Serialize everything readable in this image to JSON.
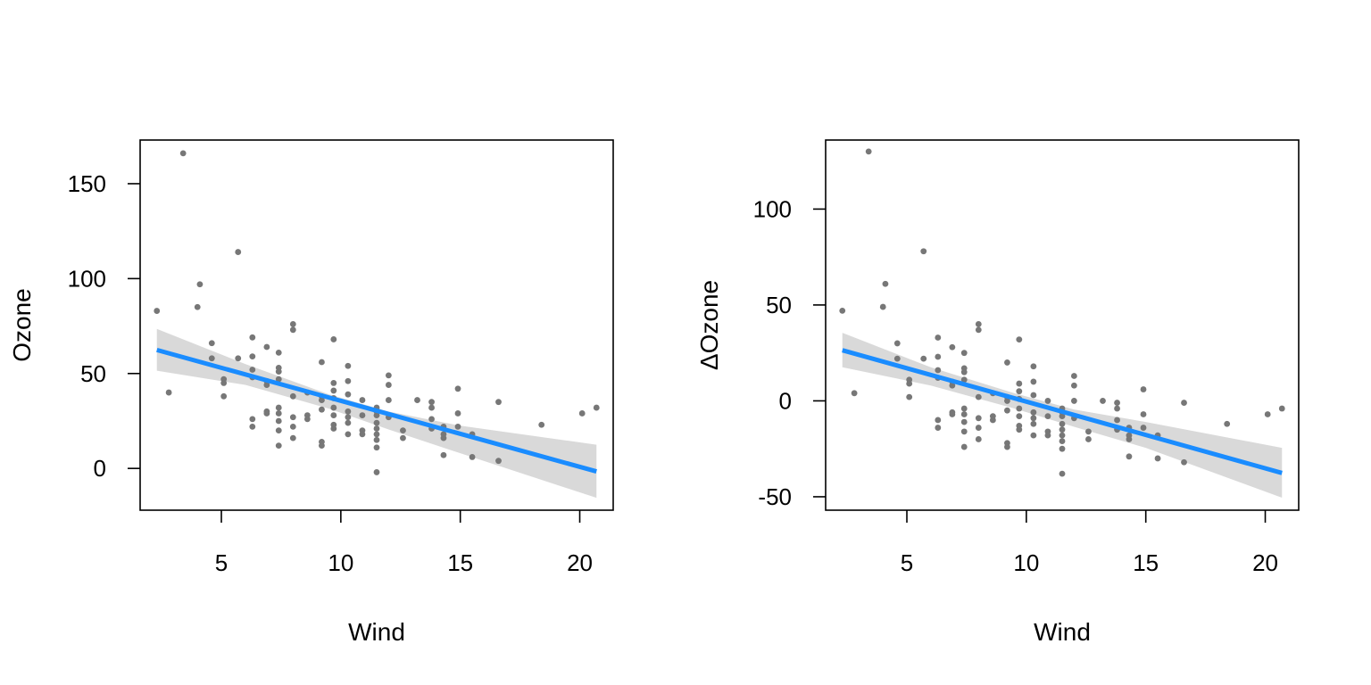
{
  "chart_data": [
    {
      "type": "scatter",
      "title": "",
      "xlabel": "Wind",
      "ylabel": "Ozone",
      "xlim": [
        1.6,
        21.4
      ],
      "ylim": [
        -22,
        173
      ],
      "xticks": [
        5,
        10,
        15,
        20
      ],
      "yticks": [
        0,
        50,
        100,
        150
      ],
      "grid": false,
      "legend": "none",
      "point_color": "#777777",
      "line_color": "#1a8cff",
      "band_color": "#d9d9d9",
      "points": [
        [
          2.3,
          83
        ],
        [
          2.8,
          40
        ],
        [
          3.4,
          166
        ],
        [
          4.0,
          85
        ],
        [
          4.1,
          97
        ],
        [
          4.6,
          66
        ],
        [
          4.6,
          58
        ],
        [
          5.1,
          45
        ],
        [
          5.1,
          47
        ],
        [
          5.1,
          38
        ],
        [
          5.7,
          114
        ],
        [
          5.7,
          58
        ],
        [
          6.3,
          69
        ],
        [
          6.3,
          59
        ],
        [
          6.3,
          52
        ],
        [
          6.3,
          48
        ],
        [
          6.3,
          26
        ],
        [
          6.3,
          22
        ],
        [
          6.9,
          64
        ],
        [
          6.9,
          46
        ],
        [
          6.9,
          44
        ],
        [
          6.9,
          30
        ],
        [
          6.9,
          29
        ],
        [
          7.4,
          61
        ],
        [
          7.4,
          53
        ],
        [
          7.4,
          51
        ],
        [
          7.4,
          47
        ],
        [
          7.4,
          32
        ],
        [
          7.4,
          29
        ],
        [
          7.4,
          25
        ],
        [
          7.4,
          20
        ],
        [
          7.4,
          12
        ],
        [
          8.0,
          76
        ],
        [
          8.0,
          73
        ],
        [
          8.0,
          38
        ],
        [
          8.0,
          27
        ],
        [
          8.0,
          22
        ],
        [
          8.0,
          16
        ],
        [
          8.6,
          40
        ],
        [
          8.6,
          28
        ],
        [
          8.6,
          26
        ],
        [
          9.2,
          56
        ],
        [
          9.2,
          38
        ],
        [
          9.2,
          36
        ],
        [
          9.2,
          31
        ],
        [
          9.2,
          14
        ],
        [
          9.2,
          12
        ],
        [
          9.7,
          68
        ],
        [
          9.7,
          45
        ],
        [
          9.7,
          41
        ],
        [
          9.7,
          37
        ],
        [
          9.7,
          32
        ],
        [
          9.7,
          28
        ],
        [
          9.7,
          23
        ],
        [
          9.7,
          21
        ],
        [
          10.3,
          54
        ],
        [
          10.3,
          46
        ],
        [
          10.3,
          39
        ],
        [
          10.3,
          30
        ],
        [
          10.3,
          27
        ],
        [
          10.3,
          24
        ],
        [
          10.3,
          18
        ],
        [
          10.9,
          36
        ],
        [
          10.9,
          28
        ],
        [
          10.9,
          20
        ],
        [
          10.9,
          18
        ],
        [
          11.5,
          32
        ],
        [
          11.5,
          30
        ],
        [
          11.5,
          28
        ],
        [
          11.5,
          24
        ],
        [
          11.5,
          21
        ],
        [
          11.5,
          18
        ],
        [
          11.5,
          15
        ],
        [
          11.5,
          11
        ],
        [
          11.5,
          -2
        ],
        [
          12.0,
          49
        ],
        [
          12.0,
          44
        ],
        [
          12.0,
          36
        ],
        [
          12.0,
          27
        ],
        [
          12.6,
          20
        ],
        [
          12.6,
          16
        ],
        [
          13.2,
          36
        ],
        [
          13.8,
          35
        ],
        [
          13.8,
          32
        ],
        [
          13.8,
          26
        ],
        [
          13.8,
          21
        ],
        [
          14.3,
          22
        ],
        [
          14.3,
          18
        ],
        [
          14.3,
          16
        ],
        [
          14.3,
          7
        ],
        [
          14.9,
          42
        ],
        [
          14.9,
          29
        ],
        [
          14.9,
          22
        ],
        [
          15.5,
          18
        ],
        [
          15.5,
          6
        ],
        [
          16.6,
          35
        ],
        [
          16.6,
          4
        ],
        [
          18.4,
          23
        ],
        [
          20.1,
          29
        ],
        [
          20.7,
          32
        ]
      ],
      "fit_line": [
        [
          2.3,
          62.4
        ],
        [
          20.7,
          -1.6
        ]
      ],
      "ci_band_upper": [
        [
          2.3,
          73.5
        ],
        [
          6.0,
          55.0
        ],
        [
          9.5,
          39.0
        ],
        [
          12.0,
          30.0
        ],
        [
          15.0,
          22.5
        ],
        [
          20.7,
          12.5
        ]
      ],
      "ci_band_lower": [
        [
          2.3,
          51.5
        ],
        [
          6.0,
          44.0
        ],
        [
          9.5,
          31.5
        ],
        [
          12.0,
          20.5
        ],
        [
          15.0,
          8.0
        ],
        [
          20.7,
          -15.5
        ]
      ]
    },
    {
      "type": "scatter",
      "title": "",
      "xlabel": "Wind",
      "ylabel": "ΔOzone",
      "xlim": [
        1.6,
        21.4
      ],
      "ylim": [
        -57,
        136
      ],
      "xticks": [
        5,
        10,
        15,
        20
      ],
      "yticks": [
        -50,
        0,
        50,
        100
      ],
      "grid": false,
      "legend": "none",
      "point_color": "#777777",
      "line_color": "#1a8cff",
      "band_color": "#d9d9d9",
      "points": [
        [
          2.3,
          47
        ],
        [
          2.8,
          4
        ],
        [
          3.4,
          130
        ],
        [
          4.0,
          49
        ],
        [
          4.1,
          61
        ],
        [
          4.6,
          30
        ],
        [
          4.6,
          22
        ],
        [
          5.1,
          9
        ],
        [
          5.1,
          11
        ],
        [
          5.1,
          2
        ],
        [
          5.7,
          78
        ],
        [
          5.7,
          22
        ],
        [
          6.3,
          33
        ],
        [
          6.3,
          23
        ],
        [
          6.3,
          16
        ],
        [
          6.3,
          12
        ],
        [
          6.3,
          -10
        ],
        [
          6.3,
          -14
        ],
        [
          6.9,
          28
        ],
        [
          6.9,
          10
        ],
        [
          6.9,
          8
        ],
        [
          6.9,
          -6
        ],
        [
          6.9,
          -7
        ],
        [
          7.4,
          25
        ],
        [
          7.4,
          17
        ],
        [
          7.4,
          15
        ],
        [
          7.4,
          11
        ],
        [
          7.4,
          -4
        ],
        [
          7.4,
          -7
        ],
        [
          7.4,
          -11
        ],
        [
          7.4,
          -16
        ],
        [
          7.4,
          -24
        ],
        [
          8.0,
          40
        ],
        [
          8.0,
          37
        ],
        [
          8.0,
          2
        ],
        [
          8.0,
          -9
        ],
        [
          8.0,
          -14
        ],
        [
          8.0,
          -20
        ],
        [
          8.6,
          4
        ],
        [
          8.6,
          -8
        ],
        [
          8.6,
          -10
        ],
        [
          9.2,
          20
        ],
        [
          9.2,
          2
        ],
        [
          9.2,
          0
        ],
        [
          9.2,
          -5
        ],
        [
          9.2,
          -22
        ],
        [
          9.2,
          -24
        ],
        [
          9.7,
          32
        ],
        [
          9.7,
          9
        ],
        [
          9.7,
          5
        ],
        [
          9.7,
          1
        ],
        [
          9.7,
          -4
        ],
        [
          9.7,
          -8
        ],
        [
          9.7,
          -13
        ],
        [
          9.7,
          -15
        ],
        [
          10.3,
          18
        ],
        [
          10.3,
          10
        ],
        [
          10.3,
          3
        ],
        [
          10.3,
          -6
        ],
        [
          10.3,
          -9
        ],
        [
          10.3,
          -12
        ],
        [
          10.3,
          -18
        ],
        [
          10.9,
          0
        ],
        [
          10.9,
          -8
        ],
        [
          10.9,
          -16
        ],
        [
          10.9,
          -18
        ],
        [
          11.5,
          -4
        ],
        [
          11.5,
          -6
        ],
        [
          11.5,
          -8
        ],
        [
          11.5,
          -12
        ],
        [
          11.5,
          -15
        ],
        [
          11.5,
          -18
        ],
        [
          11.5,
          -21
        ],
        [
          11.5,
          -25
        ],
        [
          11.5,
          -38
        ],
        [
          12.0,
          13
        ],
        [
          12.0,
          8
        ],
        [
          12.0,
          0
        ],
        [
          12.0,
          -9
        ],
        [
          12.6,
          -16
        ],
        [
          12.6,
          -20
        ],
        [
          13.2,
          0
        ],
        [
          13.8,
          -1
        ],
        [
          13.8,
          -4
        ],
        [
          13.8,
          -10
        ],
        [
          13.8,
          -15
        ],
        [
          14.3,
          -14
        ],
        [
          14.3,
          -18
        ],
        [
          14.3,
          -20
        ],
        [
          14.3,
          -29
        ],
        [
          14.9,
          6
        ],
        [
          14.9,
          -7
        ],
        [
          14.9,
          -14
        ],
        [
          15.5,
          -18
        ],
        [
          15.5,
          -30
        ],
        [
          16.6,
          -1
        ],
        [
          16.6,
          -32
        ],
        [
          18.4,
          -12
        ],
        [
          20.1,
          -7
        ],
        [
          20.7,
          -4
        ]
      ],
      "fit_line": [
        [
          2.3,
          26.4
        ],
        [
          20.7,
          -37.6
        ]
      ],
      "ci_band_upper": [
        [
          2.3,
          35.5
        ],
        [
          6.0,
          17.5
        ],
        [
          9.5,
          4.0
        ],
        [
          12.0,
          -4.5
        ],
        [
          15.0,
          -11.0
        ],
        [
          20.7,
          -24.5
        ]
      ],
      "ci_band_lower": [
        [
          2.3,
          17.5
        ],
        [
          6.0,
          8.0
        ],
        [
          9.5,
          -4.0
        ],
        [
          12.0,
          -13.5
        ],
        [
          15.0,
          -24.5
        ],
        [
          20.7,
          -50.5
        ]
      ]
    }
  ]
}
